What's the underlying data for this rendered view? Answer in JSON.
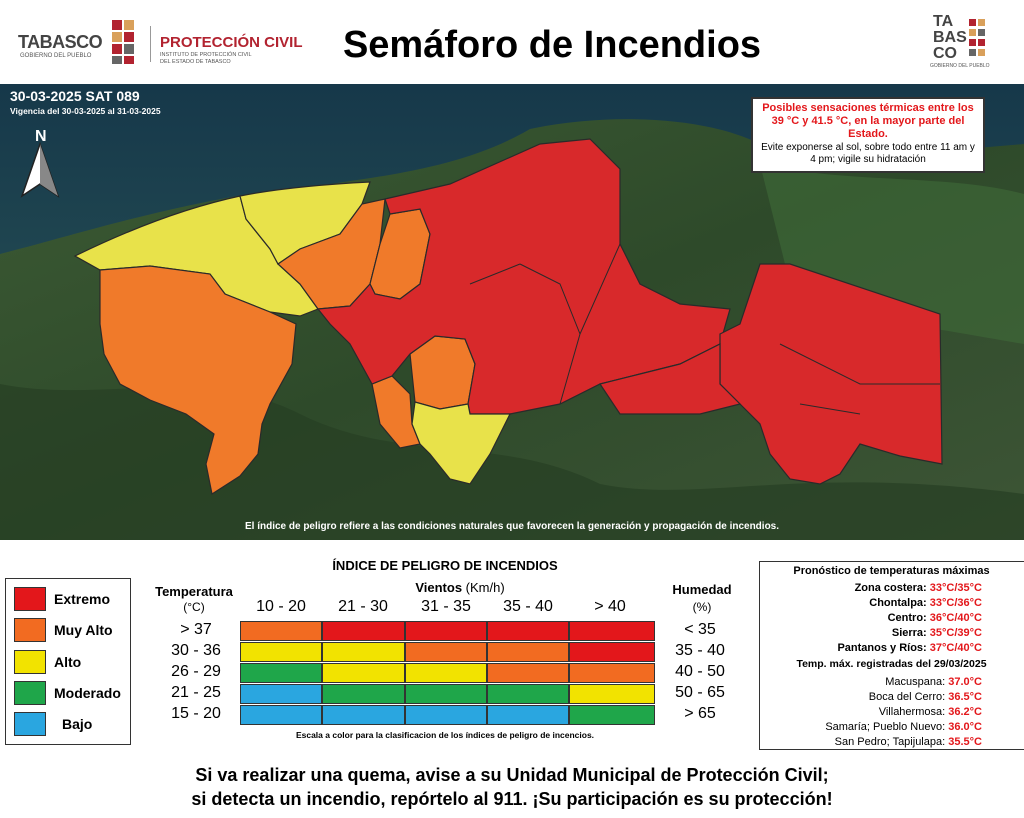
{
  "header": {
    "title": "Semáforo de Incendios",
    "logo_left": {
      "brand": "TABASCO",
      "brand_sub": "GOBIERNO DEL PUEBLO",
      "agency": "PROTECCIÓN CIVIL",
      "agency_sub1": "INSTITUTO DE PROTECCIÓN CIVIL",
      "agency_sub2": "DEL ESTADO DE TABASCO"
    },
    "logo_right": {
      "line1": "TA",
      "line2": "BAS",
      "line3": "CO",
      "sub": "GOBIERNO DEL PUEBLO"
    }
  },
  "map": {
    "bulletin_id": "30-03-2025 SAT 089",
    "validity": "Vigencia del 30-03-2025 al 31-03-2025",
    "north_label": "N",
    "alert_heading": "Posibles sensaciones térmicas entre los 39 °C y 41.5 °C, en la mayor parte del Estado.",
    "alert_body": "Evite exponerse al sol, sobre todo entre 11 am y 4 pm; vigile su hidratación",
    "note": "El índice de peligro refiere a las condiciones naturales que favorecen la generación y propagación de incendios."
  },
  "colors": {
    "extremo": "#e3171b",
    "muy_alto": "#f26b21",
    "alto": "#f2e300",
    "moderado": "#1fa64a",
    "bajo": "#2aa6e0"
  },
  "legend": [
    {
      "label": "Extremo",
      "color": "#e3171b"
    },
    {
      "label": "Muy Alto",
      "color": "#f26b21"
    },
    {
      "label": "Alto",
      "color": "#f2e300"
    },
    {
      "label": "Moderado",
      "color": "#1fa64a"
    },
    {
      "label": "Bajo",
      "color": "#2aa6e0"
    }
  ],
  "index_table": {
    "title": "ÍNDICE DE PELIGRO DE INCENDIOS",
    "temp_header": "Temperatura",
    "temp_unit": "(°C)",
    "wind_header": "Vientos",
    "wind_unit": "(Km/h)",
    "hum_header": "Humedad",
    "hum_unit": "(%)",
    "wind_ranges": [
      "10 - 20",
      "21 - 30",
      "31 - 35",
      "35 - 40",
      "> 40"
    ],
    "temp_ranges": [
      "> 37",
      "30 - 36",
      "26 - 29",
      "21 - 25",
      "15 - 20"
    ],
    "hum_ranges": [
      "< 35",
      "35 - 40",
      "40 - 50",
      "50 - 65",
      "> 65"
    ],
    "grid_levels": [
      [
        "muy_alto",
        "extremo",
        "extremo",
        "extremo",
        "extremo"
      ],
      [
        "alto",
        "alto",
        "muy_alto",
        "muy_alto",
        "extremo"
      ],
      [
        "moderado",
        "alto",
        "alto",
        "muy_alto",
        "muy_alto"
      ],
      [
        "bajo",
        "moderado",
        "moderado",
        "moderado",
        "alto"
      ],
      [
        "bajo",
        "bajo",
        "bajo",
        "bajo",
        "moderado"
      ]
    ],
    "caption": "Escala a color para la clasificacion de los índices de peligro de incencios."
  },
  "forecast": {
    "title": "Pronóstico de temperaturas máximas",
    "zones": [
      {
        "name": "Zona costera:",
        "value": "33°C/35°C"
      },
      {
        "name": "Chontalpa:",
        "value": "33°C/36°C"
      },
      {
        "name": "Centro:",
        "value": "36°C/40°C"
      },
      {
        "name": "Sierra:",
        "value": "35°C/39°C"
      },
      {
        "name": "Pantanos y Ríos:",
        "value": "37°C/40°C"
      }
    ],
    "recorded_title": "Temp. máx. registradas del 29/03/2025",
    "recorded": [
      {
        "name": "Macuspana:",
        "value": "37.0°C"
      },
      {
        "name": "Boca del Cerro:",
        "value": "36.5°C"
      },
      {
        "name": "Villahermosa:",
        "value": "36.2°C"
      },
      {
        "name": "Samaría; Pueblo Nuevo:",
        "value": "36.0°C"
      },
      {
        "name": "San Pedro; Tapijulapa:",
        "value": "35.5°C"
      }
    ]
  },
  "footer": {
    "line1": "Si va realizar una quema, avise a su Unidad Municipal de Protección Civil;",
    "line2": "si detecta un incendio, repórtelo al 911. ¡Su participación es su protección!"
  }
}
